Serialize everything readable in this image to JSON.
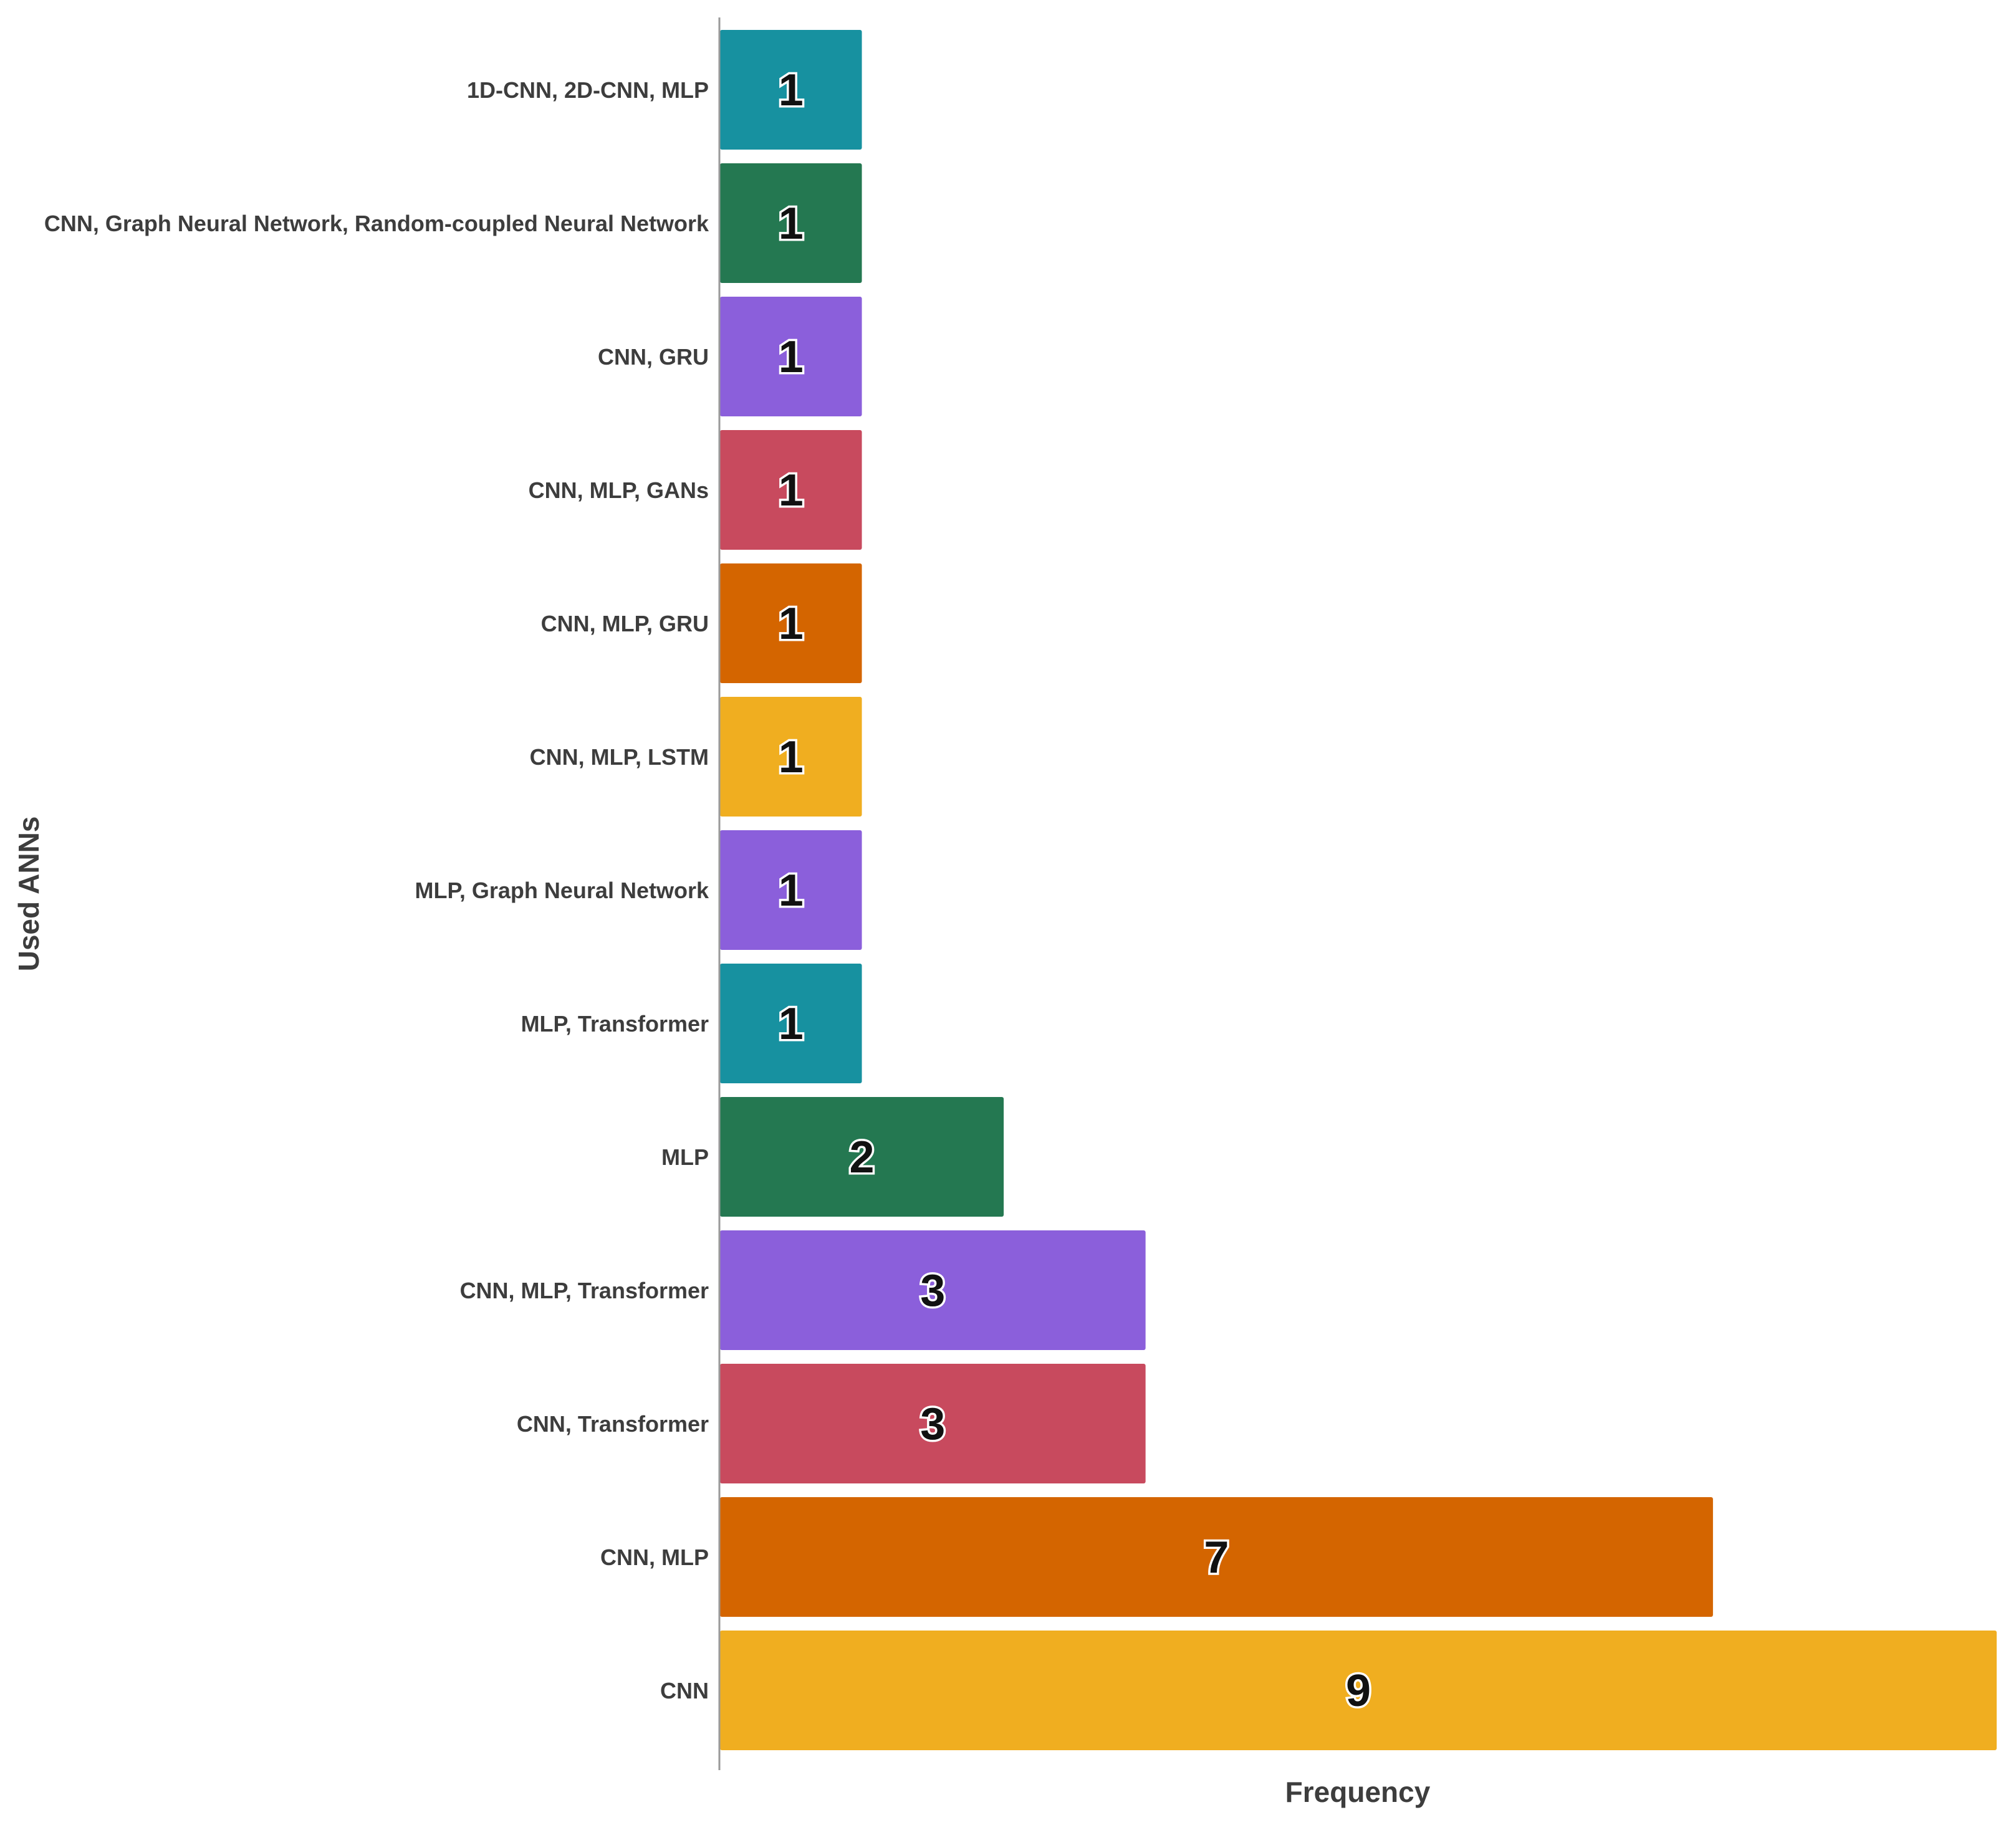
{
  "chart_data": {
    "type": "bar",
    "orientation": "horizontal",
    "xlabel": "Frequency",
    "ylabel": "Used ANNs",
    "xlim": [
      0,
      9
    ],
    "grid": false,
    "legend": "none",
    "categories": [
      "1D-CNN, 2D-CNN, MLP",
      "CNN, Graph Neural Network, Random-coupled Neural Network",
      "CNN, GRU",
      "CNN, MLP, GANs",
      "CNN, MLP, GRU",
      "CNN, MLP, LSTM",
      "MLP, Graph Neural Network",
      "MLP, Transformer",
      "MLP",
      "CNN, MLP, Transformer",
      "CNN, Transformer",
      "CNN, MLP",
      "CNN"
    ],
    "values": [
      1,
      1,
      1,
      1,
      1,
      1,
      1,
      1,
      2,
      3,
      3,
      7,
      9
    ],
    "colors": [
      "#1791a0",
      "#247851",
      "#8b5fdb",
      "#c84a5e",
      "#d46500",
      "#f0ae20",
      "#8b5fdb",
      "#1791a0",
      "#247851",
      "#8b5fdb",
      "#c84a5e",
      "#d46500",
      "#f0ae20"
    ]
  }
}
